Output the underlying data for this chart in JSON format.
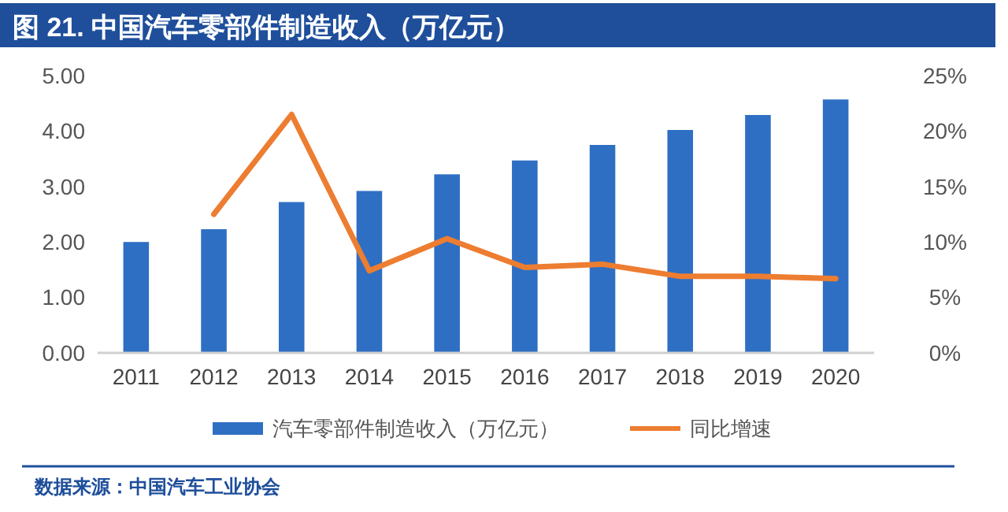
{
  "chart_data": {
    "type": "bar",
    "title": "图 21. 中国汽车零部件制造收入（万亿元）",
    "categories": [
      "2011",
      "2012",
      "2013",
      "2014",
      "2015",
      "2016",
      "2017",
      "2018",
      "2019",
      "2020"
    ],
    "series": [
      {
        "name": "汽车零部件制造收入（万亿元）",
        "color": "#2e6fc4",
        "values": [
          2.0,
          2.23,
          2.72,
          2.92,
          3.22,
          3.47,
          3.75,
          4.02,
          4.29,
          4.57
        ]
      },
      {
        "name": "同比增速",
        "type": "line",
        "axis": "y2",
        "color": "#ed7d31",
        "values": [
          null,
          12.5,
          21.5,
          7.4,
          10.3,
          7.7,
          8.0,
          6.9,
          6.9,
          6.7
        ]
      }
    ],
    "ylim": [
      0,
      5
    ],
    "yticks": [
      {
        "value": 0,
        "label": "0.00"
      },
      {
        "value": 1,
        "label": "1.00"
      },
      {
        "value": 2,
        "label": "2.00"
      },
      {
        "value": 3,
        "label": "3.00"
      },
      {
        "value": 4,
        "label": "4.00"
      },
      {
        "value": 5,
        "label": "5.00"
      }
    ],
    "y2lim": [
      0,
      25
    ],
    "y2ticks": [
      {
        "value": 0,
        "label": "0%"
      },
      {
        "value": 5,
        "label": "5%"
      },
      {
        "value": 10,
        "label": "10%"
      },
      {
        "value": 15,
        "label": "15%"
      },
      {
        "value": 20,
        "label": "20%"
      },
      {
        "value": 25,
        "label": "25%"
      }
    ],
    "legend": "bottom",
    "marker": "none",
    "annotations": [
      "数据来源：中国汽车工业协会"
    ]
  }
}
